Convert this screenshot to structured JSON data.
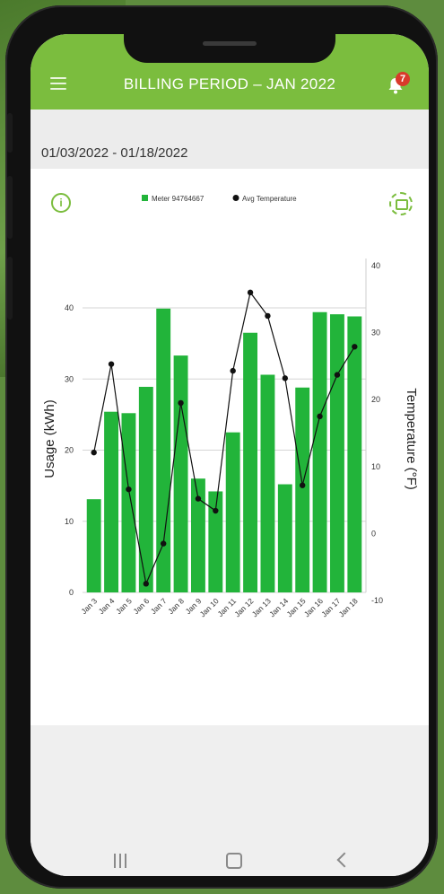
{
  "app": {
    "title": "BILLING PERIOD  –  JAN 2022",
    "notification_count": "7",
    "accent_color": "#7bbd3e"
  },
  "period": {
    "date_range": "01/03/2022 - 01/18/2022"
  },
  "icons": {
    "menu": "hamburger-menu-icon",
    "bell": "bell-icon",
    "info": "info-icon",
    "settings": "gear-icon"
  },
  "chart_data": {
    "type": "bar",
    "categories": [
      "Jan 3",
      "Jan 4",
      "Jan 5",
      "Jan 6",
      "Jan 7",
      "Jan 8",
      "Jan 9",
      "Jan 10",
      "Jan 11",
      "Jan 12",
      "Jan 13",
      "Jan 14",
      "Jan 15",
      "Jan 16",
      "Jan 17",
      "Jan 18"
    ],
    "series": [
      {
        "name": "Meter 94764667",
        "type": "bar",
        "axis": "left",
        "color": "#22b43a",
        "values": [
          13.1,
          25.4,
          25.2,
          28.9,
          39.9,
          33.3,
          16.0,
          14.2,
          22.5,
          36.5,
          30.6,
          15.2,
          28.8,
          39.4,
          39.1,
          38.8
        ]
      },
      {
        "name": "Avg Temperature",
        "type": "line",
        "axis": "right",
        "color": "#111111",
        "values": [
          12.1,
          25.3,
          6.6,
          -7.5,
          -1.5,
          19.5,
          5.2,
          3.4,
          24.3,
          36.0,
          32.5,
          23.2,
          7.2,
          17.5,
          23.7,
          27.9
        ]
      }
    ],
    "ylabel": "Usage (kWh)",
    "y2label": "Temperature (°F)",
    "ylim": [
      0,
      40
    ],
    "y2lim": [
      -10,
      40
    ],
    "yticks": [
      0,
      10,
      20,
      30,
      40
    ],
    "y2ticks": [
      -10,
      0,
      10,
      20,
      30,
      40
    ],
    "legend_position": "top",
    "grid": true
  },
  "navbar": {
    "recent": "recent-apps-icon",
    "home": "home-icon",
    "back": "back-icon"
  }
}
